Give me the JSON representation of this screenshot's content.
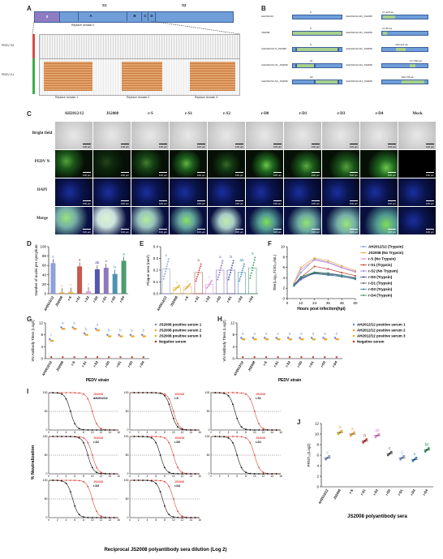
{
  "panel_letters": {
    "a": "A",
    "b": "B",
    "c": "C",
    "d": "D",
    "e": "E",
    "f": "F",
    "g": "G",
    "h": "H",
    "i": "I",
    "j": "J"
  },
  "panelA": {
    "top_labels": [
      "S1",
      "S2"
    ],
    "bar_segments": [
      "0",
      "A",
      "B",
      "C",
      "D"
    ],
    "replace_domain0": "Replace domain 0",
    "row_labels": [
      "PEDV G2",
      "PEDV G1"
    ],
    "replace_domains": [
      "Replace domain 1",
      "Replace domain 2",
      "Replace domain 3"
    ]
  },
  "panelB": {
    "left_labels": [
      "AH2012/12",
      "JS2008",
      "rAH2012/12-S_JS2008",
      "rAH2012/12-S1_JS2008",
      "rAH2012/12-S2_JS2008"
    ],
    "left_sublabels": [
      "S",
      "S",
      "S",
      "S1",
      "S2"
    ],
    "right_labels": [
      "rAH2012/12-D0_JS2008",
      "rAH2012/12-D1_JS2008",
      "rAH2012/12-D2_JS2008",
      "rAH2012/12-D3_JS2008",
      "rAH2012/12-D4_JS2008"
    ],
    "right_sublabels": [
      "27-220 aa",
      "27-89 aa",
      "230-421 aa",
      "477-593 aa",
      "330-745 aa"
    ]
  },
  "panelC": {
    "columns": [
      "AH2012/12",
      "JS2008",
      "r-S",
      "r-S1",
      "r-S2",
      "r-D0",
      "r-D1",
      "r-D3",
      "r-D4",
      "Mock"
    ],
    "rows": [
      "Bright field",
      "PEDV N",
      "DAPI",
      "Merge"
    ],
    "scale_bar": "100 μm"
  },
  "panelD": {
    "ylabel": "Number of nuclei per syncytium",
    "categories": [
      "AH2012/12",
      "JS2008",
      "r-S",
      "r-S1",
      "r-S2",
      "r-D0",
      "r-D1",
      "r-D3",
      "r-D4"
    ],
    "values": [
      65,
      3,
      4,
      58,
      5,
      52,
      55,
      42,
      70
    ],
    "letters": [
      "a",
      "c",
      "c",
      "a",
      "c",
      "ab",
      "a",
      "b",
      "a"
    ],
    "yticks": [
      "0",
      "20",
      "40",
      "60",
      "80",
      "100"
    ],
    "ylim": [
      0,
      100
    ]
  },
  "panelE": {
    "ylabel": "Plaque area (mm²)",
    "categories": [
      "AH2012/12",
      "JS2008",
      "r-S",
      "r-S1",
      "r-S2",
      "r-D0",
      "r-D1",
      "r-D3",
      "r-D4"
    ],
    "values": [
      0.21,
      0.05,
      0.06,
      0.18,
      0.08,
      0.2,
      0.2,
      0.18,
      0.22
    ],
    "letters": [
      "a",
      "c",
      "c",
      "a",
      "c",
      "a",
      "b",
      "ab",
      "a"
    ],
    "yticks": [
      "0.0",
      "0.1",
      "0.2",
      "0.3",
      "0.4"
    ],
    "ylim": [
      0,
      0.4
    ]
  },
  "panelF": {
    "ylabel": "Titer(Log₁₀TCID₅₀/mL)",
    "xlabel": "Hours post infection(hpi)",
    "x": [
      6,
      12,
      24,
      36,
      48,
      60
    ],
    "xticks": [
      "0",
      "12",
      "24",
      "36",
      "48",
      "60"
    ],
    "yticks": [
      "0",
      "2",
      "4",
      "6",
      "8",
      "10"
    ],
    "ylim": [
      0,
      10
    ],
    "series": [
      {
        "name": "AH2012/12 (Trypsin)",
        "color": "#7b8fd6",
        "values": [
          3.0,
          5.0,
          7.6,
          7.0,
          6.0,
          5.2
        ]
      },
      {
        "name": "JS2008 (No Trypsin)",
        "color": "#f0a040",
        "values": [
          3.0,
          6.0,
          7.8,
          7.3,
          6.3,
          5.4
        ]
      },
      {
        "name": "r-S (No Trypsin)",
        "color": "#e38cd2",
        "values": [
          2.8,
          5.6,
          7.4,
          6.9,
          5.9,
          5.1
        ]
      },
      {
        "name": "r-S1 (Trypsin)",
        "color": "#c0392b",
        "values": [
          2.6,
          4.1,
          6.2,
          5.7,
          5.0,
          4.4
        ]
      },
      {
        "name": "r-S2 (No Trypsin)",
        "color": "#a07bd6",
        "values": [
          2.4,
          3.6,
          5.0,
          4.9,
          4.3,
          3.9
        ]
      },
      {
        "name": "r-D0 (Trypsin)",
        "color": "#3a3aa0",
        "values": [
          2.5,
          3.8,
          4.9,
          4.7,
          4.5,
          4.0
        ]
      },
      {
        "name": "r-D1 (Trypsin)",
        "color": "#555555",
        "values": [
          2.6,
          4.0,
          5.0,
          4.6,
          4.2,
          3.8
        ]
      },
      {
        "name": "r-D3 (Trypsin)",
        "color": "#2f7fa8",
        "values": [
          2.4,
          3.9,
          4.8,
          4.5,
          4.3,
          3.7
        ]
      },
      {
        "name": "r-D4 (Trypsin)",
        "color": "#2e8b57",
        "values": [
          2.7,
          4.2,
          5.1,
          4.9,
          4.5,
          4.0
        ]
      }
    ]
  },
  "panelG": {
    "ylabel": "VN Antibody Titers (Log2)",
    "xlabel": "PEDV strain",
    "categories": [
      "AH2012/12",
      "JS2008",
      "r-S",
      "r-S1",
      "r-S2",
      "r-D0",
      "r-D1",
      "r-D3",
      "r-D4"
    ],
    "letters": [
      "c",
      "a",
      "a",
      "b",
      "a",
      "b",
      "b",
      "b",
      "b"
    ],
    "yticks": [
      "0",
      "4",
      "8",
      "12"
    ],
    "ylim": [
      0,
      12
    ],
    "series": [
      {
        "name": "JS2008 positive serum 1",
        "color": "#7b8fd6",
        "values": [
          6.5,
          10.5,
          10.5,
          8.5,
          10,
          8,
          8,
          8,
          8
        ]
      },
      {
        "name": "JS2008 positive serum 2",
        "color": "#f0a040",
        "values": [
          6,
          10,
          10,
          8,
          9.5,
          7.5,
          7.5,
          7.5,
          7.5
        ]
      },
      {
        "name": "JS2008 positive serum 3",
        "color": "#e0b020",
        "values": [
          6,
          10,
          10,
          8,
          9.5,
          7.5,
          7.5,
          7.5,
          7.5
        ]
      },
      {
        "name": "Negative serum",
        "color": "#c0392b",
        "values": [
          0.5,
          0.5,
          0.5,
          0.5,
          0.5,
          0.5,
          0.5,
          0.5,
          0.5
        ]
      }
    ]
  },
  "panelH": {
    "ylabel": "VN Antibody Titers (Log2)",
    "xlabel": "PEDV strain",
    "categories": [
      "AH2012/12",
      "JS2008",
      "r-S",
      "r-S1",
      "r-S2",
      "r-D0",
      "r-D1",
      "r-D3",
      "r-D4"
    ],
    "letters": [
      "a",
      "a",
      "a",
      "a",
      "a",
      "a",
      "a",
      "a",
      "a"
    ],
    "yticks": [
      "0",
      "4",
      "8",
      "12"
    ],
    "ylim": [
      0,
      12
    ],
    "series": [
      {
        "name": "AH2012/12 positive serum 1",
        "color": "#7b8fd6",
        "values": [
          7,
          7,
          7,
          7,
          7,
          7,
          7,
          7,
          7
        ]
      },
      {
        "name": "AH2012/12 positive serum 2",
        "color": "#f0a040",
        "values": [
          6.5,
          6.5,
          6.5,
          6.5,
          6.5,
          6.5,
          6.5,
          6.5,
          6.5
        ]
      },
      {
        "name": "AH2012/12 positive serum 3",
        "color": "#e0b020",
        "values": [
          6.5,
          6.5,
          6.5,
          6.5,
          6.5,
          6.5,
          6.5,
          6.5,
          6.5
        ]
      },
      {
        "name": "Negative serum",
        "color": "#c0392b",
        "values": [
          0.5,
          0.5,
          0.5,
          0.5,
          0.5,
          0.5,
          0.5,
          0.5,
          0.5
        ]
      }
    ]
  },
  "panelI": {
    "ylabel": "% Neutralization",
    "xlabel": "Reciprocal JS2008 polyantibody sera dilution (Log 2)",
    "xticks": [
      "0",
      "2",
      "4",
      "6",
      "8",
      "10",
      "12",
      "14",
      "16"
    ],
    "yticks": [
      "0",
      "50",
      "100"
    ],
    "plots": [
      {
        "a": "JS2008",
        "b": "AH2012/12",
        "ic_a": 10,
        "ic_b": 5
      },
      {
        "a": "JS2008",
        "b": "r-S",
        "ic_a": 10,
        "ic_b": 9.5
      },
      {
        "a": "JS2008",
        "b": "r-S1",
        "ic_a": 10,
        "ic_b": 5.5
      },
      {
        "a": "JS2008",
        "b": "r-S2",
        "ic_a": 10,
        "ic_b": 9
      },
      {
        "a": "JS2008",
        "b": "r-D0",
        "ic_a": 10,
        "ic_b": 7
      },
      {
        "a": "JS2008",
        "b": "r-D1",
        "ic_a": 10,
        "ic_b": 6
      },
      {
        "a": "JS2008",
        "b": "r-D3",
        "ic_a": 10,
        "ic_b": 5.5
      },
      {
        "a": "JS2008",
        "b": "r-D4",
        "ic_a": 10,
        "ic_b": 7.5
      }
    ]
  },
  "panelJ": {
    "ylabel": "PRNT₅₀(Log2)",
    "xlabel": "JS2008 polyantibody sera",
    "categories": [
      "AH2012/12",
      "JS2008",
      "r-S",
      "r-S1",
      "r-S2",
      "r-D0",
      "r-D1",
      "r-D3",
      "r-D4"
    ],
    "values": [
      5.5,
      10.3,
      10.0,
      8.7,
      9.7,
      6.3,
      5.5,
      5.2,
      7.0
    ],
    "colors": [
      "#7b8fd6",
      "#e0b020",
      "#f0a040",
      "#c0392b",
      "#e38cd2",
      "#555555",
      "#7b8fd6",
      "#2f7fa8",
      "#2e8b57"
    ],
    "letters": [
      "c",
      "a",
      "a",
      "b",
      "ab",
      "c",
      "c",
      "c",
      "bc"
    ],
    "yticks": [
      "0",
      "2",
      "4",
      "6",
      "8",
      "10",
      "12"
    ],
    "ylim": [
      0,
      12
    ]
  }
}
